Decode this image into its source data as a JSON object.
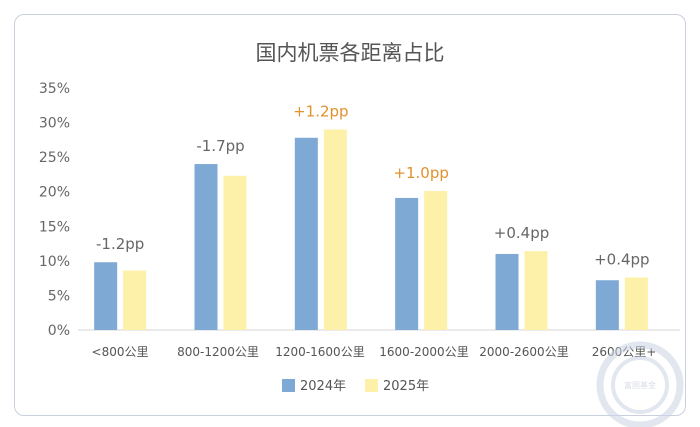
{
  "chart_data": {
    "type": "bar",
    "title": "国内机票各距离占比",
    "categories": [
      "<800公里",
      "800-1200公里",
      "1200-1600公里",
      "1600-2000公里",
      "2000-2600公里",
      "2600公里+"
    ],
    "series": [
      {
        "name": "2024年",
        "values": [
          9.8,
          24.0,
          27.8,
          19.1,
          11.0,
          7.2
        ],
        "color": "#7ea9d4"
      },
      {
        "name": "2025年",
        "values": [
          8.6,
          22.3,
          29.0,
          20.1,
          11.4,
          7.6
        ],
        "color": "#fdf0a8"
      }
    ],
    "annotations": [
      {
        "text": "-1.2pp",
        "color": "#666666"
      },
      {
        "text": "-1.7pp",
        "color": "#666666"
      },
      {
        "text": "+1.2pp",
        "color": "#e0922d"
      },
      {
        "text": "+1.0pp",
        "color": "#e0922d"
      },
      {
        "text": "+0.4pp",
        "color": "#666666"
      },
      {
        "text": "+0.4pp",
        "color": "#666666"
      }
    ],
    "yticks": [
      "0%",
      "5%",
      "10%",
      "15%",
      "20%",
      "25%",
      "30%",
      "35%"
    ],
    "ylim": [
      0,
      35
    ],
    "legend_position": "bottom",
    "grid": false
  },
  "watermark": {
    "text": "富国基金"
  }
}
